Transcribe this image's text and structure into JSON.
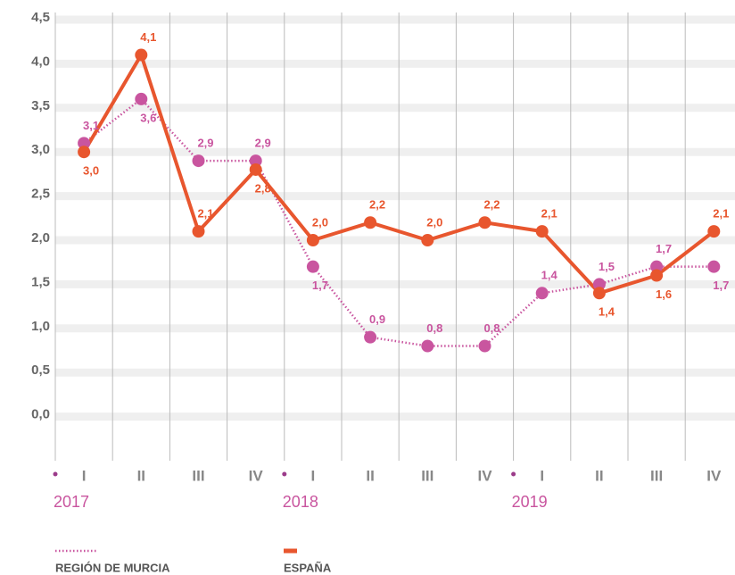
{
  "chart_data": {
    "type": "line",
    "categories": [
      "I",
      "II",
      "III",
      "IV",
      "I",
      "II",
      "III",
      "IV",
      "I",
      "II",
      "III",
      "IV"
    ],
    "x_groups": [
      "2017",
      "2018",
      "2019"
    ],
    "series": [
      {
        "name": "REGIÓN DE MURCIA",
        "color": "#c9559f",
        "style": "dotted",
        "values": [
          3.1,
          3.6,
          2.9,
          2.9,
          1.7,
          0.9,
          0.8,
          0.8,
          1.4,
          1.5,
          1.7,
          1.7
        ],
        "value_labels": [
          "3,1",
          "3,6",
          "2,9",
          "2,9",
          "1,7",
          "0,9",
          "0,8",
          "0,8",
          "1,4",
          "1,5",
          "1,7",
          "1,7"
        ]
      },
      {
        "name": "ESPAÑA",
        "color": "#e8562e",
        "style": "solid",
        "values": [
          3.0,
          4.1,
          2.1,
          2.8,
          2.0,
          2.2,
          2.0,
          2.2,
          2.1,
          1.4,
          1.6,
          2.1
        ],
        "value_labels": [
          "3,0",
          "4,1",
          "2,1",
          "2,8",
          "2,0",
          "2,2",
          "2,0",
          "2,2",
          "2,1",
          "1,4",
          "1,6",
          "2,1"
        ]
      }
    ],
    "ylim": [
      -0.5,
      4.5
    ],
    "yticks": [
      {
        "value": 0,
        "label": "0,0"
      },
      {
        "value": 0.5,
        "label": "0,5"
      },
      {
        "value": 1,
        "label": "1,0"
      },
      {
        "value": 1.5,
        "label": "1,5"
      },
      {
        "value": 2,
        "label": "2,0"
      },
      {
        "value": 2.5,
        "label": "2,5"
      },
      {
        "value": 3,
        "label": "3,0"
      },
      {
        "value": 3.5,
        "label": "3,5"
      },
      {
        "value": 4,
        "label": "4,0"
      },
      {
        "value": 4.5,
        "label": "4,5"
      }
    ],
    "grid": true,
    "legend": "bottom"
  }
}
